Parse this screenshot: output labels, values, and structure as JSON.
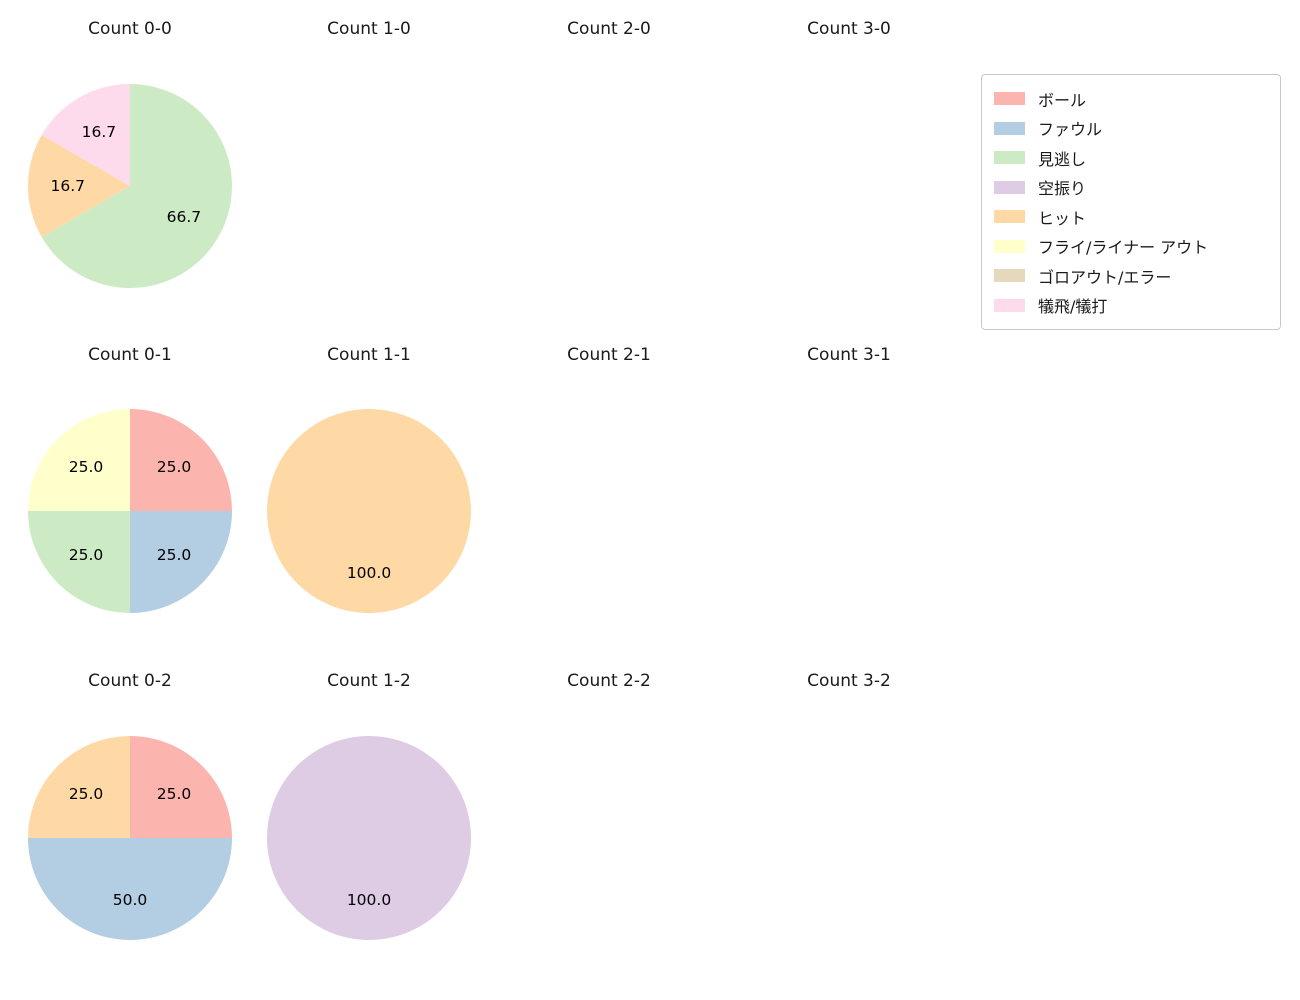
{
  "figure": {
    "background_color": "#ffffff",
    "text_color": "#1a1a1a"
  },
  "legend": {
    "position": "top-right",
    "entries": [
      {
        "label": "ボール",
        "color": "#fbb4ae"
      },
      {
        "label": "ファウル",
        "color": "#b3cde3"
      },
      {
        "label": "見逃し",
        "color": "#ccebc5"
      },
      {
        "label": "空振り",
        "color": "#decbe4"
      },
      {
        "label": "ヒット",
        "color": "#fed9a6"
      },
      {
        "label": "フライ/ライナー アウト",
        "color": "#ffffcc"
      },
      {
        "label": "ゴロアウト/エラー",
        "color": "#e5d8bd"
      },
      {
        "label": "犠飛/犠打",
        "color": "#fddaec"
      }
    ]
  },
  "chart_data": {
    "type": "pie",
    "grid": {
      "rows": 3,
      "cols": 4
    },
    "start_angle_deg": 90,
    "direction": "clockwise",
    "value_unit": "percent",
    "label_format": "one-decimal",
    "legend_entries": [
      "ボール",
      "ファウル",
      "見逃し",
      "空振り",
      "ヒット",
      "フライ/ライナー アウト",
      "ゴロアウト/エラー",
      "犠飛/犠打"
    ],
    "charts": [
      {
        "title": "Count 0-0",
        "row": 0,
        "col": 0,
        "slices": [
          {
            "label": "見逃し",
            "value": 66.7
          },
          {
            "label": "ヒット",
            "value": 16.7
          },
          {
            "label": "犠飛/犠打",
            "value": 16.7
          }
        ]
      },
      {
        "title": "Count 1-0",
        "row": 0,
        "col": 1,
        "slices": []
      },
      {
        "title": "Count 2-0",
        "row": 0,
        "col": 2,
        "slices": []
      },
      {
        "title": "Count 3-0",
        "row": 0,
        "col": 3,
        "slices": []
      },
      {
        "title": "Count 0-1",
        "row": 1,
        "col": 0,
        "slices": [
          {
            "label": "ボール",
            "value": 25.0
          },
          {
            "label": "ファウル",
            "value": 25.0
          },
          {
            "label": "見逃し",
            "value": 25.0
          },
          {
            "label": "フライ/ライナー アウト",
            "value": 25.0
          }
        ]
      },
      {
        "title": "Count 1-1",
        "row": 1,
        "col": 1,
        "slices": [
          {
            "label": "ヒット",
            "value": 100.0
          }
        ]
      },
      {
        "title": "Count 2-1",
        "row": 1,
        "col": 2,
        "slices": []
      },
      {
        "title": "Count 3-1",
        "row": 1,
        "col": 3,
        "slices": []
      },
      {
        "title": "Count 0-2",
        "row": 2,
        "col": 0,
        "slices": [
          {
            "label": "ボール",
            "value": 25.0
          },
          {
            "label": "ファウル",
            "value": 50.0
          },
          {
            "label": "ヒット",
            "value": 25.0
          }
        ]
      },
      {
        "title": "Count 1-2",
        "row": 2,
        "col": 1,
        "slices": [
          {
            "label": "空振り",
            "value": 100.0
          }
        ]
      },
      {
        "title": "Count 2-2",
        "row": 2,
        "col": 2,
        "slices": []
      },
      {
        "title": "Count 3-2",
        "row": 2,
        "col": 3,
        "slices": []
      }
    ]
  }
}
